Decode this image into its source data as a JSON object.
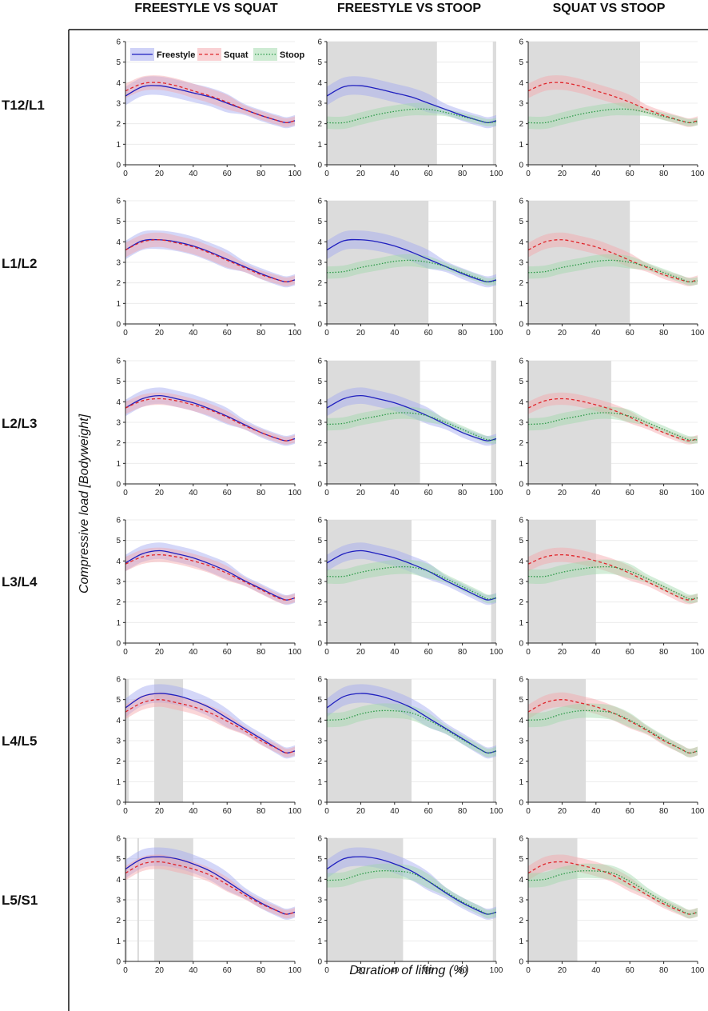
{
  "figure": {
    "column_titles": [
      "FREESTYLE VS SQUAT",
      "FREESTYLE VS STOOP",
      "SQUAT VS STOOP"
    ],
    "row_labels": [
      "T12/L1",
      "L1/L2",
      "L2/L3",
      "L3/L4",
      "L4/L5",
      "L5/S1"
    ],
    "ylabel": "Compressive load [Bodyweight]",
    "xlabel": "Duration of lifting (%)"
  },
  "colors": {
    "freestyle": "#1f1fbf",
    "freestyle_band": "#9fa6f0",
    "squat": "#e0262b",
    "squat_band": "#f4a3a9",
    "stoop": "#2c9a48",
    "stoop_band": "#9ed7a8",
    "shade": "#dcdcdc"
  },
  "chart_data": {
    "type": "line",
    "xlim": [
      0,
      100
    ],
    "ylim": [
      0,
      6
    ],
    "xticks": [
      0,
      20,
      40,
      60,
      80,
      100
    ],
    "yticks": [
      0,
      1,
      2,
      3,
      4,
      5,
      6
    ],
    "x": [
      0,
      10,
      20,
      30,
      40,
      50,
      60,
      70,
      80,
      90,
      95,
      100
    ],
    "legend": {
      "entries": [
        "Freestyle",
        "Squat",
        "Stoop"
      ],
      "position": "top",
      "panel": "T12/L1 - FREESTYLE VS SQUAT"
    },
    "levels": [
      {
        "name": "T12/L1",
        "freestyle": {
          "mean": [
            3.35,
            3.8,
            3.85,
            3.7,
            3.5,
            3.3,
            3.0,
            2.7,
            2.4,
            2.15,
            2.05,
            2.15
          ],
          "band": 0.45
        },
        "squat": {
          "mean": [
            3.6,
            3.95,
            4.0,
            3.85,
            3.6,
            3.35,
            3.05,
            2.7,
            2.4,
            2.15,
            2.05,
            2.15
          ],
          "band": 0.35
        },
        "stoop": {
          "mean": [
            2.05,
            2.05,
            2.25,
            2.45,
            2.6,
            2.7,
            2.7,
            2.55,
            2.35,
            2.15,
            2.05,
            2.1
          ],
          "band": 0.3
        },
        "significant": {
          "freestyle_vs_squat": [],
          "freestyle_vs_stoop": [
            [
              0,
              65
            ],
            [
              98,
              100
            ]
          ],
          "squat_vs_stoop": [
            [
              0,
              66
            ]
          ]
        }
      },
      {
        "name": "L1/L2",
        "freestyle": {
          "mean": [
            3.6,
            4.05,
            4.1,
            4.0,
            3.8,
            3.5,
            3.15,
            2.8,
            2.45,
            2.15,
            2.05,
            2.15
          ],
          "band": 0.45
        },
        "squat": {
          "mean": [
            3.6,
            4.0,
            4.1,
            3.95,
            3.75,
            3.45,
            3.1,
            2.75,
            2.4,
            2.15,
            2.05,
            2.15
          ],
          "band": 0.35
        },
        "stoop": {
          "mean": [
            2.5,
            2.55,
            2.75,
            2.9,
            3.05,
            3.1,
            3.0,
            2.8,
            2.5,
            2.2,
            2.05,
            2.1
          ],
          "band": 0.3
        },
        "significant": {
          "freestyle_vs_squat": [],
          "freestyle_vs_stoop": [
            [
              0,
              60
            ],
            [
              98,
              100
            ]
          ],
          "squat_vs_stoop": [
            [
              0,
              60
            ]
          ]
        }
      },
      {
        "name": "L2/L3",
        "freestyle": {
          "mean": [
            3.7,
            4.15,
            4.3,
            4.15,
            3.95,
            3.65,
            3.3,
            2.9,
            2.5,
            2.2,
            2.1,
            2.2
          ],
          "band": 0.4
        },
        "squat": {
          "mean": [
            3.7,
            4.05,
            4.15,
            4.05,
            3.85,
            3.6,
            3.25,
            2.85,
            2.5,
            2.2,
            2.1,
            2.2
          ],
          "band": 0.3
        },
        "stoop": {
          "mean": [
            2.9,
            2.95,
            3.15,
            3.3,
            3.45,
            3.45,
            3.3,
            3.0,
            2.65,
            2.3,
            2.15,
            2.15
          ],
          "band": 0.3
        },
        "significant": {
          "freestyle_vs_squat": [],
          "freestyle_vs_stoop": [
            [
              0,
              55
            ],
            [
              97,
              100
            ]
          ],
          "squat_vs_stoop": [
            [
              0,
              49
            ]
          ]
        }
      },
      {
        "name": "L3/L4",
        "freestyle": {
          "mean": [
            3.9,
            4.35,
            4.5,
            4.35,
            4.15,
            3.85,
            3.5,
            3.05,
            2.65,
            2.25,
            2.1,
            2.2
          ],
          "band": 0.4
        },
        "squat": {
          "mean": [
            3.85,
            4.2,
            4.3,
            4.2,
            4.0,
            3.75,
            3.4,
            3.0,
            2.6,
            2.2,
            2.1,
            2.2
          ],
          "band": 0.35
        },
        "stoop": {
          "mean": [
            3.25,
            3.25,
            3.45,
            3.6,
            3.7,
            3.7,
            3.5,
            3.15,
            2.75,
            2.35,
            2.15,
            2.2
          ],
          "band": 0.35
        },
        "significant": {
          "freestyle_vs_squat": [],
          "freestyle_vs_stoop": [
            [
              0,
              50
            ],
            [
              97,
              100
            ]
          ],
          "squat_vs_stoop": [
            [
              0,
              40
            ]
          ]
        }
      },
      {
        "name": "L4/L5",
        "freestyle": {
          "mean": [
            4.6,
            5.15,
            5.3,
            5.2,
            4.95,
            4.6,
            4.1,
            3.6,
            3.1,
            2.6,
            2.4,
            2.5
          ],
          "band": 0.45
        },
        "squat": {
          "mean": [
            4.4,
            4.85,
            5.0,
            4.85,
            4.65,
            4.35,
            3.95,
            3.5,
            3.0,
            2.6,
            2.4,
            2.5
          ],
          "band": 0.35
        },
        "stoop": {
          "mean": [
            4.0,
            4.05,
            4.3,
            4.45,
            4.45,
            4.35,
            4.0,
            3.55,
            3.05,
            2.6,
            2.4,
            2.5
          ],
          "band": 0.35
        },
        "significant": {
          "freestyle_vs_squat": [
            [
              0,
              2
            ],
            [
              17,
              34
            ]
          ],
          "freestyle_vs_stoop": [
            [
              0,
              50
            ],
            [
              98,
              100
            ]
          ],
          "squat_vs_stoop": [
            [
              0,
              34
            ]
          ]
        }
      },
      {
        "name": "L5/S1",
        "freestyle": {
          "mean": [
            4.5,
            5.0,
            5.1,
            5.0,
            4.75,
            4.4,
            3.9,
            3.35,
            2.85,
            2.45,
            2.3,
            2.4
          ],
          "band": 0.45
        },
        "squat": {
          "mean": [
            4.3,
            4.75,
            4.85,
            4.7,
            4.5,
            4.2,
            3.75,
            3.25,
            2.8,
            2.45,
            2.3,
            2.4
          ],
          "band": 0.35
        },
        "stoop": {
          "mean": [
            3.95,
            4.0,
            4.25,
            4.4,
            4.4,
            4.3,
            3.9,
            3.4,
            2.9,
            2.5,
            2.3,
            2.4
          ],
          "band": 0.35
        },
        "significant": {
          "freestyle_vs_squat": [
            [
              0,
              1
            ],
            [
              7,
              8
            ],
            [
              17,
              40
            ]
          ],
          "freestyle_vs_stoop": [
            [
              0,
              45
            ],
            [
              98,
              100
            ]
          ],
          "squat_vs_stoop": [
            [
              0,
              29
            ]
          ]
        }
      }
    ]
  }
}
